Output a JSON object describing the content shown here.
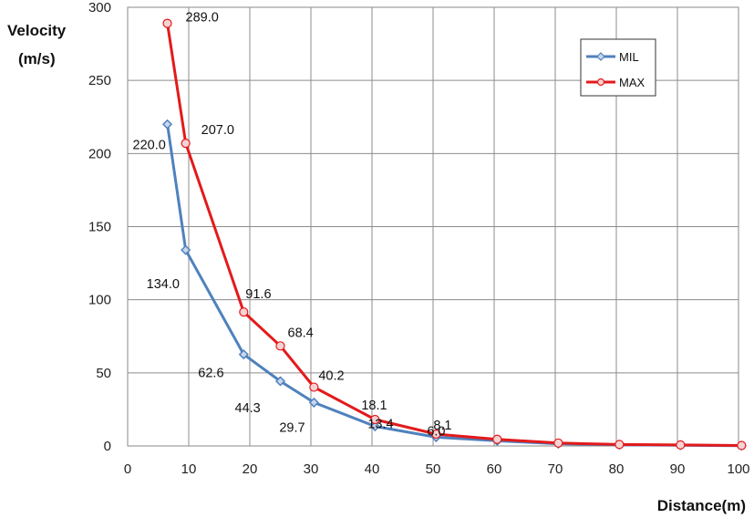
{
  "chart_data": {
    "type": "line",
    "xlabel": "Distance(m)",
    "ylabel_line1": "Velocity",
    "ylabel_line2": "(m/s)",
    "xlim": [
      0,
      100
    ],
    "ylim": [
      0,
      300
    ],
    "x_ticks": [
      "0",
      "10",
      "20",
      "30",
      "40",
      "50",
      "60",
      "70",
      "80",
      "90",
      "100"
    ],
    "y_ticks": [
      "0",
      "50",
      "100",
      "150",
      "200",
      "250",
      "300"
    ],
    "grid": true,
    "legend_position": "top-right",
    "series": [
      {
        "name": "MIL",
        "color": "#4f81bd",
        "marker": "diamond",
        "x": [
          6.5,
          9.5,
          19,
          25,
          30.5,
          40.5,
          50.5,
          60.5,
          70.5,
          80.5,
          90.5,
          100.5
        ],
        "y": [
          220.0,
          134.0,
          62.6,
          44.3,
          29.7,
          13.4,
          6.0,
          3.5,
          1.5,
          0.8,
          0.5,
          0.2
        ],
        "labels": [
          "220.0",
          "134.0",
          "62.6",
          "44.3",
          "29.7",
          "13.4",
          "6.0",
          null,
          null,
          null,
          null,
          null
        ]
      },
      {
        "name": "MAX",
        "color": "#e31a1c",
        "marker": "circle",
        "x": [
          6.5,
          9.5,
          19,
          25,
          30.5,
          40.5,
          50.5,
          60.5,
          70.5,
          80.5,
          90.5,
          100.5
        ],
        "y": [
          289.0,
          207.0,
          91.6,
          68.4,
          40.2,
          18.1,
          8.1,
          4.5,
          2.0,
          1.0,
          0.7,
          0.3
        ],
        "labels": [
          "289.0",
          "207.0",
          "91.6",
          "68.4",
          "40.2",
          "18.1",
          "8.1",
          null,
          null,
          null,
          null,
          null
        ]
      }
    ]
  }
}
